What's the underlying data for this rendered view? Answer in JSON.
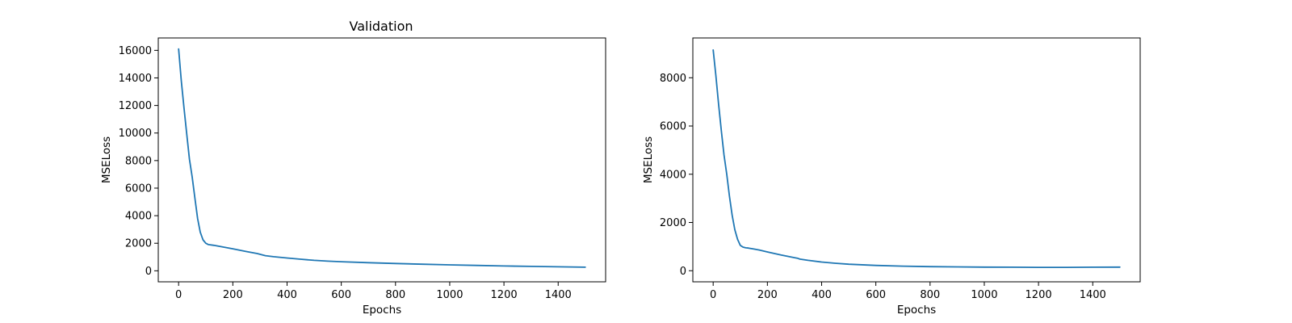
{
  "chart_data": [
    {
      "type": "line",
      "title": "Validation",
      "xlabel": "Epochs",
      "ylabel": "MSELoss",
      "xlim": [
        -75,
        1575
      ],
      "ylim": [
        -800,
        16900
      ],
      "xticks": [
        0,
        200,
        400,
        600,
        800,
        1000,
        1200,
        1400
      ],
      "yticks": [
        0,
        2000,
        4000,
        6000,
        8000,
        10000,
        12000,
        14000,
        16000
      ],
      "grid": false,
      "series": [
        {
          "color": "#1f77b4",
          "x": [
            0,
            10,
            20,
            30,
            40,
            50,
            60,
            70,
            80,
            90,
            100,
            110,
            130,
            150,
            200,
            250,
            290,
            300,
            320,
            350,
            400,
            450,
            500,
            550,
            600,
            700,
            800,
            900,
            1000,
            1100,
            1200,
            1300,
            1400,
            1500
          ],
          "y": [
            16100,
            13800,
            11800,
            9900,
            8100,
            6800,
            5300,
            3800,
            2800,
            2250,
            2000,
            1900,
            1850,
            1780,
            1600,
            1400,
            1250,
            1200,
            1100,
            1020,
            930,
            840,
            760,
            700,
            660,
            590,
            530,
            480,
            430,
            390,
            350,
            320,
            290,
            260
          ]
        }
      ]
    },
    {
      "type": "line",
      "title": "",
      "xlabel": "Epochs",
      "ylabel": "MSELoss",
      "xlim": [
        -75,
        1575
      ],
      "ylim": [
        -460,
        9650
      ],
      "xticks": [
        0,
        200,
        400,
        600,
        800,
        1000,
        1200,
        1400
      ],
      "yticks": [
        0,
        2000,
        4000,
        6000,
        8000
      ],
      "grid": false,
      "series": [
        {
          "color": "#1f77b4",
          "x": [
            0,
            10,
            20,
            30,
            40,
            50,
            60,
            70,
            80,
            90,
            100,
            110,
            120,
            130,
            150,
            170,
            200,
            250,
            300,
            310,
            320,
            350,
            400,
            450,
            500,
            600,
            700,
            800,
            900,
            1000,
            1100,
            1200,
            1300,
            1400,
            1500
          ],
          "y": [
            9150,
            8100,
            6900,
            5800,
            4800,
            4000,
            3100,
            2300,
            1700,
            1300,
            1050,
            980,
            950,
            940,
            900,
            860,
            780,
            650,
            540,
            520,
            480,
            430,
            360,
            310,
            270,
            220,
            190,
            170,
            160,
            150,
            145,
            140,
            140,
            145,
            150
          ]
        }
      ]
    }
  ]
}
